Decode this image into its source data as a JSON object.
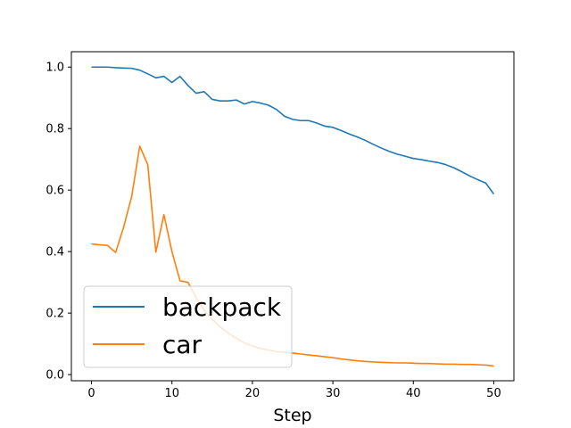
{
  "chart_data": {
    "type": "line",
    "title": "",
    "xlabel": "Step",
    "ylabel": "",
    "xlim": [
      -2.5,
      52.5
    ],
    "ylim": [
      -0.02,
      1.05
    ],
    "xticks": [
      0,
      10,
      20,
      30,
      40,
      50
    ],
    "yticks": [
      0.0,
      0.2,
      0.4,
      0.6,
      0.8,
      1.0
    ],
    "grid": false,
    "legend_position": "lower-left",
    "x": [
      0,
      1,
      2,
      3,
      4,
      5,
      6,
      7,
      8,
      9,
      10,
      11,
      12,
      13,
      14,
      15,
      16,
      17,
      18,
      19,
      20,
      21,
      22,
      23,
      24,
      25,
      26,
      27,
      28,
      29,
      30,
      31,
      32,
      33,
      34,
      35,
      36,
      37,
      38,
      39,
      40,
      41,
      42,
      43,
      44,
      45,
      46,
      47,
      48,
      49,
      50
    ],
    "series": [
      {
        "name": "backpack",
        "color": "#1f77b4",
        "values": [
          1.0,
          1.0,
          1.0,
          0.998,
          0.997,
          0.996,
          0.99,
          0.978,
          0.965,
          0.97,
          0.95,
          0.97,
          0.94,
          0.915,
          0.92,
          0.895,
          0.89,
          0.89,
          0.893,
          0.88,
          0.888,
          0.883,
          0.876,
          0.862,
          0.84,
          0.83,
          0.826,
          0.826,
          0.818,
          0.808,
          0.804,
          0.794,
          0.783,
          0.773,
          0.762,
          0.749,
          0.737,
          0.726,
          0.717,
          0.71,
          0.703,
          0.699,
          0.694,
          0.69,
          0.683,
          0.673,
          0.66,
          0.646,
          0.634,
          0.623,
          0.587
        ]
      },
      {
        "name": "car",
        "color": "#ff7f0e",
        "values": [
          0.425,
          0.422,
          0.42,
          0.397,
          0.48,
          0.58,
          0.743,
          0.682,
          0.398,
          0.52,
          0.4,
          0.305,
          0.3,
          0.25,
          0.21,
          0.18,
          0.155,
          0.135,
          0.118,
          0.103,
          0.093,
          0.085,
          0.08,
          0.075,
          0.073,
          0.07,
          0.067,
          0.064,
          0.061,
          0.058,
          0.055,
          0.051,
          0.048,
          0.045,
          0.043,
          0.041,
          0.04,
          0.039,
          0.038,
          0.038,
          0.037,
          0.036,
          0.036,
          0.035,
          0.034,
          0.034,
          0.033,
          0.033,
          0.032,
          0.031,
          0.028
        ]
      }
    ]
  }
}
